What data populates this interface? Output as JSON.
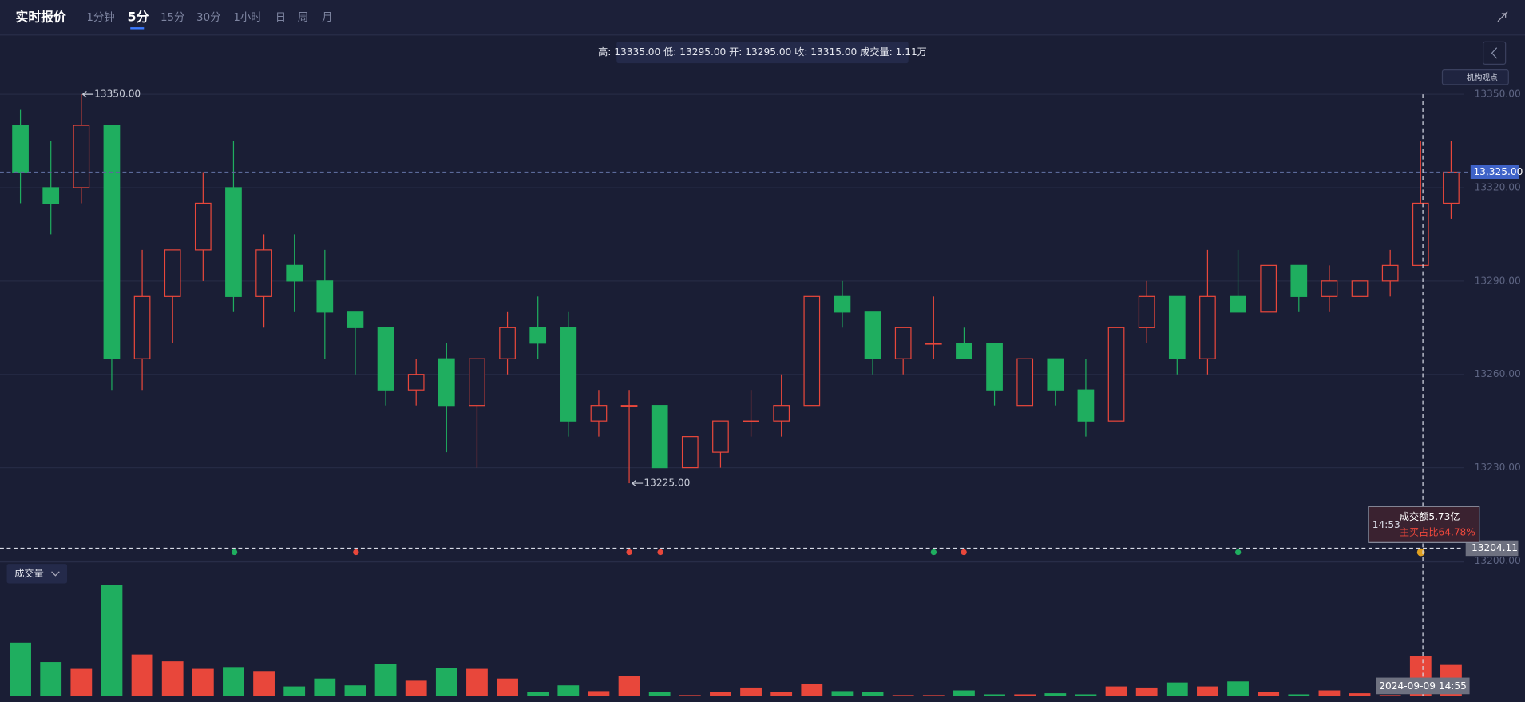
{
  "header": {
    "title": "实时报价",
    "tabs": [
      "1分钟",
      "5分",
      "15分",
      "30分",
      "1小时",
      "日",
      "周",
      "月"
    ],
    "active_tab": "5分",
    "side_button": "机构观点"
  },
  "chart_data": {
    "type": "candlestick",
    "info_bar": "高: 13335.00 低: 13295.00 开: 13295.00 收: 13315.00 成交量: 1.11万",
    "open": [
      13340,
      13320,
      13320,
      13340,
      13265,
      13285,
      13300,
      13320,
      13285,
      13295,
      13290,
      13280,
      13275,
      13255,
      13265,
      13250,
      13265,
      13275,
      13275,
      13245,
      13250,
      13250,
      13230,
      13235,
      13245,
      13245,
      13250,
      13285,
      13280,
      13265,
      13270,
      13270,
      13270,
      13250,
      13265,
      13255,
      13245,
      13275,
      13285,
      13265,
      13285,
      13280,
      13295,
      13285,
      13285,
      13290,
      13295,
      13315
    ],
    "high": [
      13345,
      13335,
      13350,
      13340,
      13300,
      13300,
      13325,
      13335,
      13305,
      13305,
      13300,
      13280,
      13275,
      13265,
      13270,
      13265,
      13280,
      13285,
      13280,
      13255,
      13255,
      13250,
      13240,
      13245,
      13255,
      13260,
      13285,
      13290,
      13280,
      13275,
      13285,
      13275,
      13270,
      13265,
      13265,
      13265,
      13275,
      13290,
      13285,
      13300,
      13300,
      13295,
      13295,
      13295,
      13290,
      13300,
      13335,
      13335
    ],
    "low": [
      13315,
      13305,
      13315,
      13255,
      13255,
      13270,
      13290,
      13280,
      13275,
      13280,
      13265,
      13260,
      13250,
      13250,
      13235,
      13230,
      13260,
      13265,
      13240,
      13240,
      13225,
      13230,
      13230,
      13230,
      13240,
      13240,
      13250,
      13275,
      13260,
      13260,
      13265,
      13265,
      13250,
      13250,
      13250,
      13240,
      13245,
      13270,
      13260,
      13260,
      13280,
      13280,
      13280,
      13280,
      13285,
      13285,
      13295,
      13310
    ],
    "close": [
      13325,
      13315,
      13340,
      13265,
      13285,
      13300,
      13315,
      13285,
      13300,
      13290,
      13280,
      13275,
      13255,
      13260,
      13250,
      13265,
      13275,
      13270,
      13245,
      13250,
      13250,
      13230,
      13240,
      13245,
      13245,
      13250,
      13285,
      13280,
      13265,
      13275,
      13270,
      13265,
      13255,
      13265,
      13255,
      13245,
      13275,
      13285,
      13265,
      13285,
      13280,
      13295,
      13285,
      13290,
      13290,
      13295,
      13315,
      13325
    ],
    "ylim": [
      13200,
      13350
    ],
    "yticks": [
      {
        "value": 13350,
        "label": "13350.00"
      },
      {
        "value": 13320,
        "label": "13320.00"
      },
      {
        "value": 13290,
        "label": "13290.00"
      },
      {
        "value": 13260,
        "label": "13260.00"
      },
      {
        "value": 13230,
        "label": "13230.00"
      },
      {
        "value": 13200,
        "label": "13200.00"
      }
    ],
    "max_marker": {
      "value": 13350,
      "label": "13350.00"
    },
    "min_marker": {
      "value": 13225,
      "label": "13225.00"
    },
    "last_price": {
      "value": 13325,
      "label": "13,325.00"
    },
    "crosshair": {
      "time": "2024-09-09 14:55",
      "price": 13204.11
    },
    "tooltip": {
      "time": "14:53",
      "amount": "成交额5.73亿",
      "buy_ratio": "主买占比64.78%"
    },
    "up_color": "#e8473b",
    "down_color": "#1fae5f",
    "volume": {
      "label": "成交量",
      "ylim": [
        0,
        3.2
      ],
      "values": [
        1.49,
        0.95,
        0.76,
        3.11,
        1.16,
        0.97,
        0.76,
        0.81,
        0.7,
        0.27,
        0.49,
        0.3,
        0.89,
        0.43,
        0.78,
        0.76,
        0.49,
        0.11,
        0.3,
        0.14,
        0.57,
        0.11,
        0.03,
        0.11,
        0.24,
        0.11,
        0.35,
        0.14,
        0.11,
        0.03,
        0.03,
        0.16,
        0.05,
        0.05,
        0.08,
        0.05,
        0.27,
        0.24,
        0.38,
        0.27,
        0.41,
        0.11,
        0.05,
        0.16,
        0.08,
        0.03,
        1.11,
        0.87
      ]
    }
  }
}
